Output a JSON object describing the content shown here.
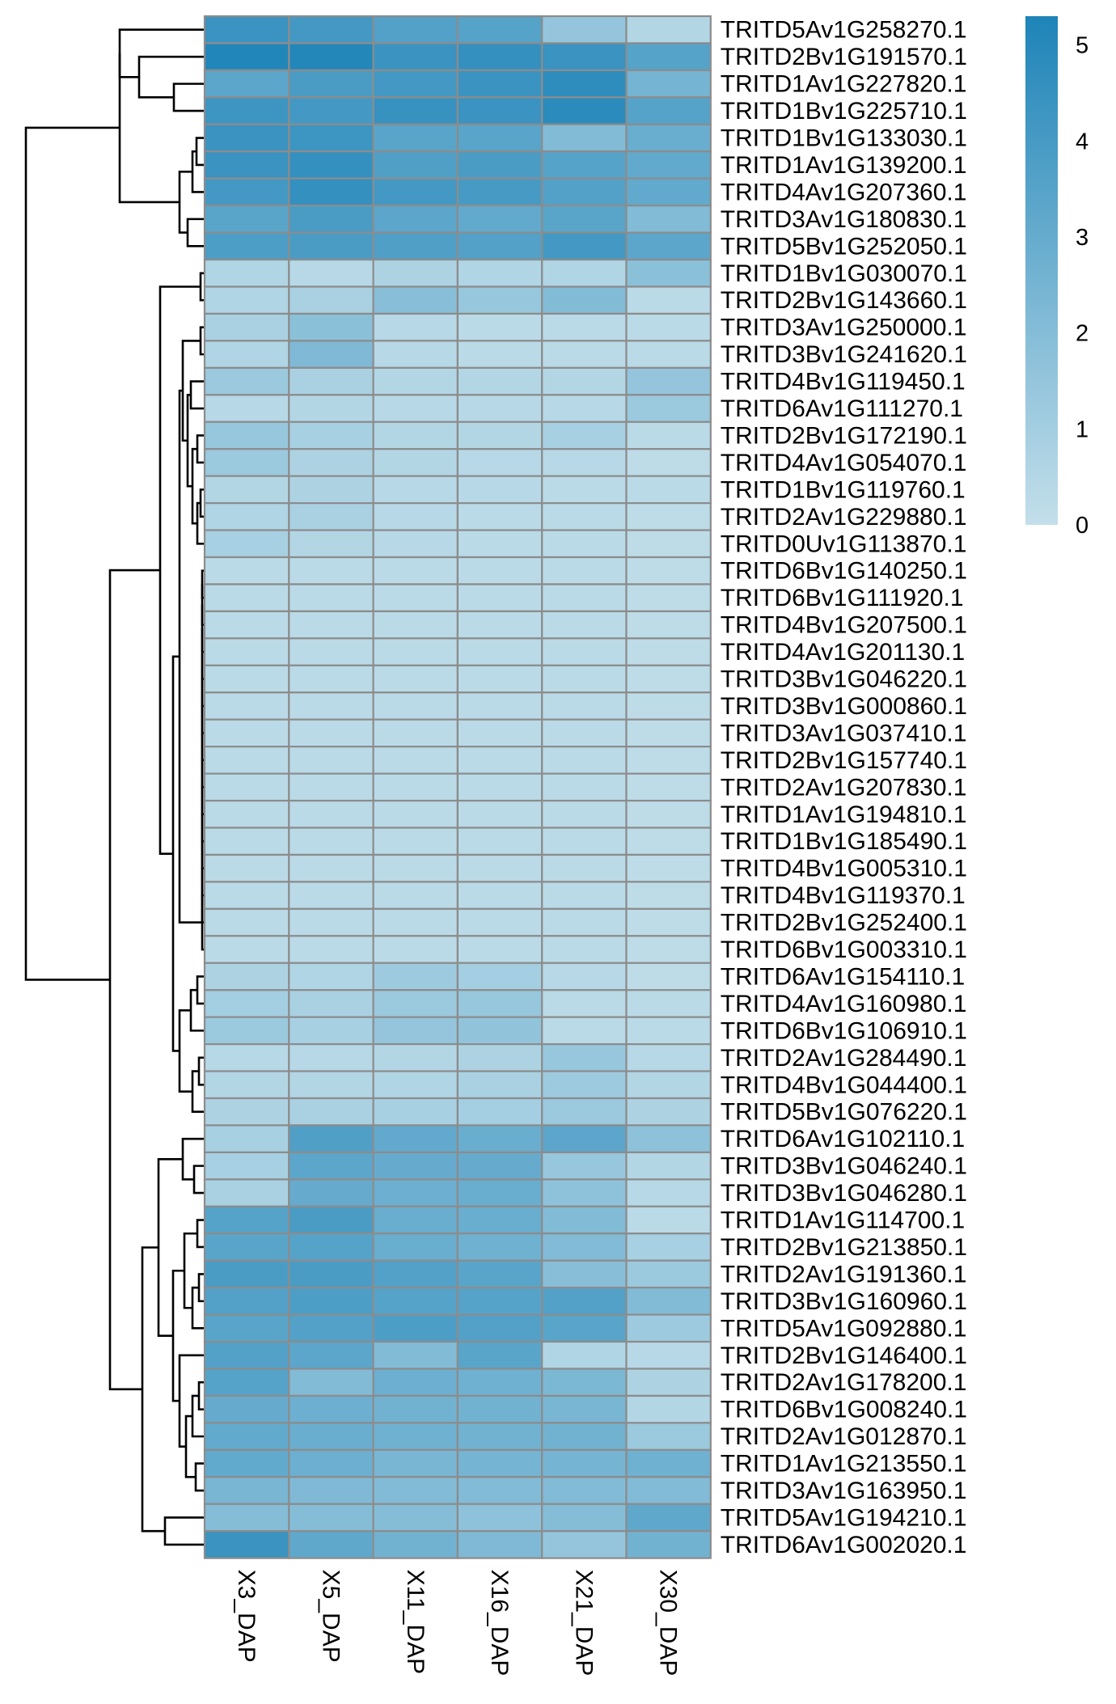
{
  "chart_data": {
    "type": "heatmap",
    "title": "",
    "columns": [
      "X3_DAP",
      "X5_DAP",
      "X11_DAP",
      "X16_DAP",
      "X21_DAP",
      "X30_DAP"
    ],
    "rows": [
      "TRITD5Av1G258270.1",
      "TRITD2Bv1G191570.1",
      "TRITD1Av1G227820.1",
      "TRITD1Bv1G225710.1",
      "TRITD1Bv1G133030.1",
      "TRITD1Av1G139200.1",
      "TRITD4Av1G207360.1",
      "TRITD3Av1G180830.1",
      "TRITD5Bv1G252050.1",
      "TRITD1Bv1G030070.1",
      "TRITD2Bv1G143660.1",
      "TRITD3Av1G250000.1",
      "TRITD3Bv1G241620.1",
      "TRITD4Bv1G119450.1",
      "TRITD6Av1G111270.1",
      "TRITD2Bv1G172190.1",
      "TRITD4Av1G054070.1",
      "TRITD1Bv1G119760.1",
      "TRITD2Av1G229880.1",
      "TRITD0Uv1G113870.1",
      "TRITD6Bv1G140250.1",
      "TRITD6Bv1G111920.1",
      "TRITD4Bv1G207500.1",
      "TRITD4Av1G201130.1",
      "TRITD3Bv1G046220.1",
      "TRITD3Bv1G000860.1",
      "TRITD3Av1G037410.1",
      "TRITD2Bv1G157740.1",
      "TRITD2Av1G207830.1",
      "TRITD1Av1G194810.1",
      "TRITD1Bv1G185490.1",
      "TRITD4Bv1G005310.1",
      "TRITD4Bv1G119370.1",
      "TRITD2Bv1G252400.1",
      "TRITD6Bv1G003310.1",
      "TRITD6Av1G154110.1",
      "TRITD4Av1G160980.1",
      "TRITD6Bv1G106910.1",
      "TRITD2Av1G284490.1",
      "TRITD4Bv1G044400.1",
      "TRITD5Bv1G076220.1",
      "TRITD6Av1G102110.1",
      "TRITD3Bv1G046240.1",
      "TRITD3Bv1G046280.1",
      "TRITD1Av1G114700.1",
      "TRITD2Bv1G213850.1",
      "TRITD2Av1G191360.1",
      "TRITD3Bv1G160960.1",
      "TRITD5Av1G092880.1",
      "TRITD2Bv1G146400.1",
      "TRITD2Av1G178200.1",
      "TRITD6Bv1G008240.1",
      "TRITD2Av1G012870.1",
      "TRITD1Av1G213550.1",
      "TRITD3Av1G163950.1",
      "TRITD5Av1G194210.1",
      "TRITD6Av1G002020.1"
    ],
    "values": [
      [
        4.4,
        4.1,
        3.6,
        3.5,
        1.5,
        0.5
      ],
      [
        5.2,
        5.1,
        4.4,
        4.6,
        4.4,
        3.5
      ],
      [
        3.3,
        3.9,
        4.1,
        4.4,
        4.8,
        2.5
      ],
      [
        4.3,
        4.1,
        4.5,
        4.4,
        4.9,
        3.5
      ],
      [
        4.4,
        4.3,
        3.4,
        3.4,
        2.1,
        2.9
      ],
      [
        4.4,
        4.6,
        3.7,
        3.9,
        3.5,
        3.1
      ],
      [
        4.1,
        4.6,
        4.1,
        4.0,
        3.6,
        3.1
      ],
      [
        3.4,
        3.9,
        3.3,
        3.1,
        3.4,
        2.1
      ],
      [
        3.8,
        3.9,
        3.7,
        3.6,
        4.1,
        3.3
      ],
      [
        0.6,
        0.4,
        0.7,
        0.6,
        0.6,
        1.8
      ],
      [
        0.6,
        0.8,
        1.9,
        1.4,
        2.1,
        0.3
      ],
      [
        0.8,
        1.8,
        0.4,
        0.3,
        0.3,
        0.3
      ],
      [
        0.6,
        2.2,
        0.4,
        0.3,
        0.3,
        0.3
      ],
      [
        1.3,
        0.8,
        0.5,
        0.5,
        0.5,
        1.5
      ],
      [
        0.4,
        0.5,
        0.4,
        0.4,
        0.4,
        1.3
      ],
      [
        1.4,
        0.9,
        0.5,
        0.5,
        0.9,
        0.3
      ],
      [
        1.3,
        0.7,
        0.5,
        0.4,
        0.4,
        0.2
      ],
      [
        0.5,
        0.7,
        0.4,
        0.4,
        0.3,
        0.3
      ],
      [
        0.6,
        0.8,
        0.4,
        0.3,
        0.3,
        0.2
      ],
      [
        0.9,
        0.5,
        0.4,
        0.3,
        0.3,
        0.2
      ],
      [
        0.3,
        0.3,
        0.3,
        0.3,
        0.3,
        0.2
      ],
      [
        0.3,
        0.3,
        0.3,
        0.3,
        0.3,
        0.2
      ],
      [
        0.3,
        0.3,
        0.3,
        0.3,
        0.3,
        0.2
      ],
      [
        0.3,
        0.3,
        0.3,
        0.3,
        0.3,
        0.2
      ],
      [
        0.3,
        0.3,
        0.3,
        0.3,
        0.3,
        0.2
      ],
      [
        0.3,
        0.3,
        0.3,
        0.3,
        0.3,
        0.2
      ],
      [
        0.3,
        0.3,
        0.3,
        0.3,
        0.3,
        0.2
      ],
      [
        0.3,
        0.3,
        0.3,
        0.3,
        0.3,
        0.2
      ],
      [
        0.3,
        0.3,
        0.3,
        0.3,
        0.3,
        0.2
      ],
      [
        0.3,
        0.3,
        0.3,
        0.3,
        0.3,
        0.2
      ],
      [
        0.3,
        0.3,
        0.3,
        0.3,
        0.3,
        0.2
      ],
      [
        0.3,
        0.3,
        0.3,
        0.3,
        0.3,
        0.2
      ],
      [
        0.3,
        0.3,
        0.3,
        0.3,
        0.3,
        0.2
      ],
      [
        0.3,
        0.3,
        0.3,
        0.3,
        0.3,
        0.2
      ],
      [
        0.3,
        0.3,
        0.3,
        0.3,
        0.3,
        0.2
      ],
      [
        0.7,
        0.6,
        1.2,
        1.0,
        0.4,
        0.2
      ],
      [
        1.0,
        0.8,
        1.3,
        1.4,
        0.3,
        0.3
      ],
      [
        1.3,
        0.9,
        1.5,
        1.6,
        0.3,
        0.3
      ],
      [
        0.4,
        0.4,
        0.5,
        0.7,
        1.4,
        0.4
      ],
      [
        0.5,
        0.5,
        0.6,
        0.8,
        1.2,
        0.5
      ],
      [
        0.7,
        0.8,
        0.9,
        1.0,
        1.3,
        0.7
      ],
      [
        0.9,
        3.7,
        3.1,
        2.9,
        3.3,
        1.7
      ],
      [
        0.9,
        3.3,
        3.0,
        3.0,
        1.4,
        0.5
      ],
      [
        0.8,
        3.0,
        2.8,
        2.9,
        1.7,
        0.4
      ],
      [
        3.5,
        3.9,
        2.9,
        2.9,
        2.1,
        0.3
      ],
      [
        3.4,
        3.5,
        2.9,
        2.7,
        2.1,
        0.9
      ],
      [
        3.9,
        3.9,
        3.6,
        3.4,
        1.9,
        1.3
      ],
      [
        3.6,
        3.8,
        3.5,
        3.5,
        3.6,
        2.1
      ],
      [
        3.4,
        3.6,
        3.8,
        3.6,
        3.4,
        1.2
      ],
      [
        3.6,
        3.3,
        2.1,
        3.4,
        0.6,
        0.4
      ],
      [
        3.5,
        2.1,
        2.8,
        2.7,
        2.3,
        0.7
      ],
      [
        3.0,
        2.8,
        2.6,
        2.6,
        2.4,
        0.5
      ],
      [
        3.1,
        2.9,
        2.7,
        2.6,
        2.6,
        1.3
      ],
      [
        3.1,
        2.8,
        2.4,
        2.5,
        2.5,
        2.7
      ],
      [
        2.4,
        2.2,
        2.1,
        2.1,
        2.1,
        2.1
      ],
      [
        2.0,
        2.0,
        2.0,
        1.7,
        2.0,
        3.2
      ],
      [
        4.4,
        3.2,
        2.6,
        2.2,
        1.5,
        2.6
      ]
    ],
    "color_scale": {
      "min": 0,
      "max": 5.3,
      "low_color": "#c3dfea",
      "high_color": "#1e84b8"
    },
    "legend": {
      "ticks": [
        0,
        1,
        2,
        3,
        4,
        5
      ],
      "placement": "top-right"
    },
    "cell_border_color": "#8c8c8c",
    "row_dendrogram": "left",
    "grid": true
  }
}
